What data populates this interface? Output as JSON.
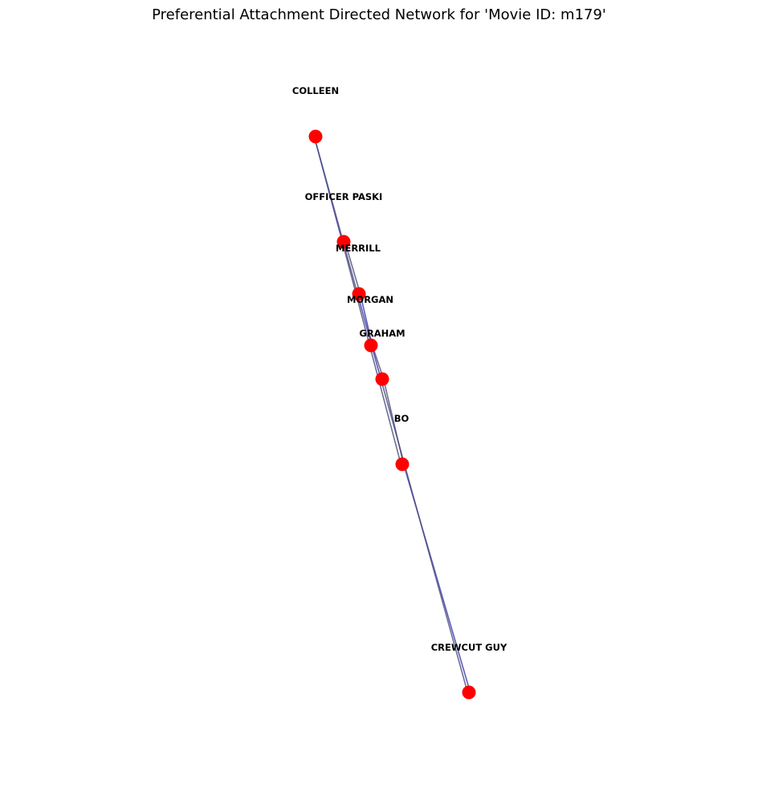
{
  "title": "Preferential Attachment Directed Network for 'Movie ID: m179'",
  "colors": {
    "node": "#ff0000",
    "edge": "#4a4a7a",
    "edge_highlight": "#3333aa",
    "label": "#000000"
  },
  "nodes": [
    {
      "id": "COLLEEN",
      "label": "COLLEEN"
    },
    {
      "id": "OFFICER PASKI",
      "label": "OFFICER PASKI"
    },
    {
      "id": "MERRILL",
      "label": "MERRILL"
    },
    {
      "id": "MORGAN",
      "label": "MORGAN"
    },
    {
      "id": "GRAHAM",
      "label": "GRAHAM"
    },
    {
      "id": "BO",
      "label": "BO"
    },
    {
      "id": "CREWCUT GUY",
      "label": "CREWCUT GUY"
    }
  ],
  "edges": [
    {
      "source": "COLLEEN",
      "target": "OFFICER PASKI"
    },
    {
      "source": "OFFICER PASKI",
      "target": "MERRILL"
    },
    {
      "source": "COLLEEN",
      "target": "MERRILL"
    },
    {
      "source": "MERRILL",
      "target": "MORGAN"
    },
    {
      "source": "OFFICER PASKI",
      "target": "MORGAN"
    },
    {
      "source": "MORGAN",
      "target": "GRAHAM"
    },
    {
      "source": "MERRILL",
      "target": "GRAHAM"
    },
    {
      "source": "GRAHAM",
      "target": "BO"
    },
    {
      "source": "MORGAN",
      "target": "BO"
    },
    {
      "source": "BO",
      "target": "CREWCUT GUY"
    },
    {
      "source": "GRAHAM",
      "target": "CREWCUT GUY"
    }
  ]
}
